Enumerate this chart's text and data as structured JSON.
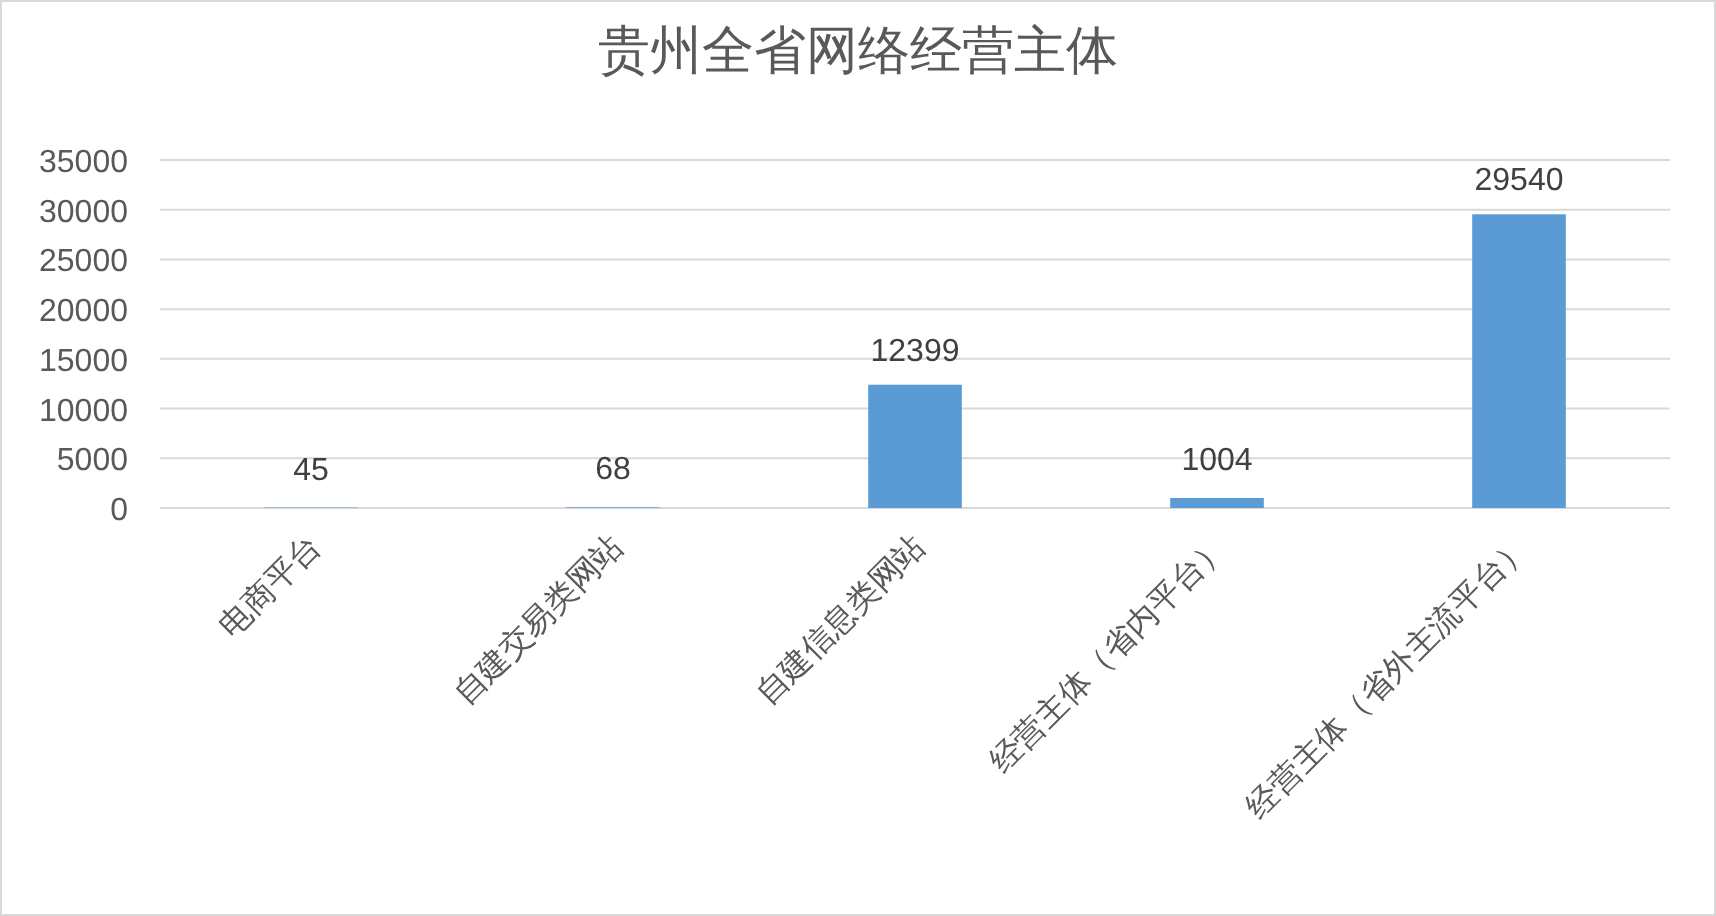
{
  "chart_data": {
    "type": "bar",
    "title": "贵州全省网络经营主体",
    "categories": [
      "电商平台",
      "自建交易类网站",
      "自建信息类网站",
      "经营主体（省内平台）",
      "经营主体（省外主流平台）"
    ],
    "values": [
      45,
      68,
      12399,
      1004,
      29540
    ],
    "color": "#5b9bd5",
    "ylim": [
      0,
      35000
    ],
    "yticks": [
      0,
      5000,
      10000,
      15000,
      20000,
      25000,
      30000,
      35000
    ],
    "grid": "y",
    "data_labels": true
  }
}
